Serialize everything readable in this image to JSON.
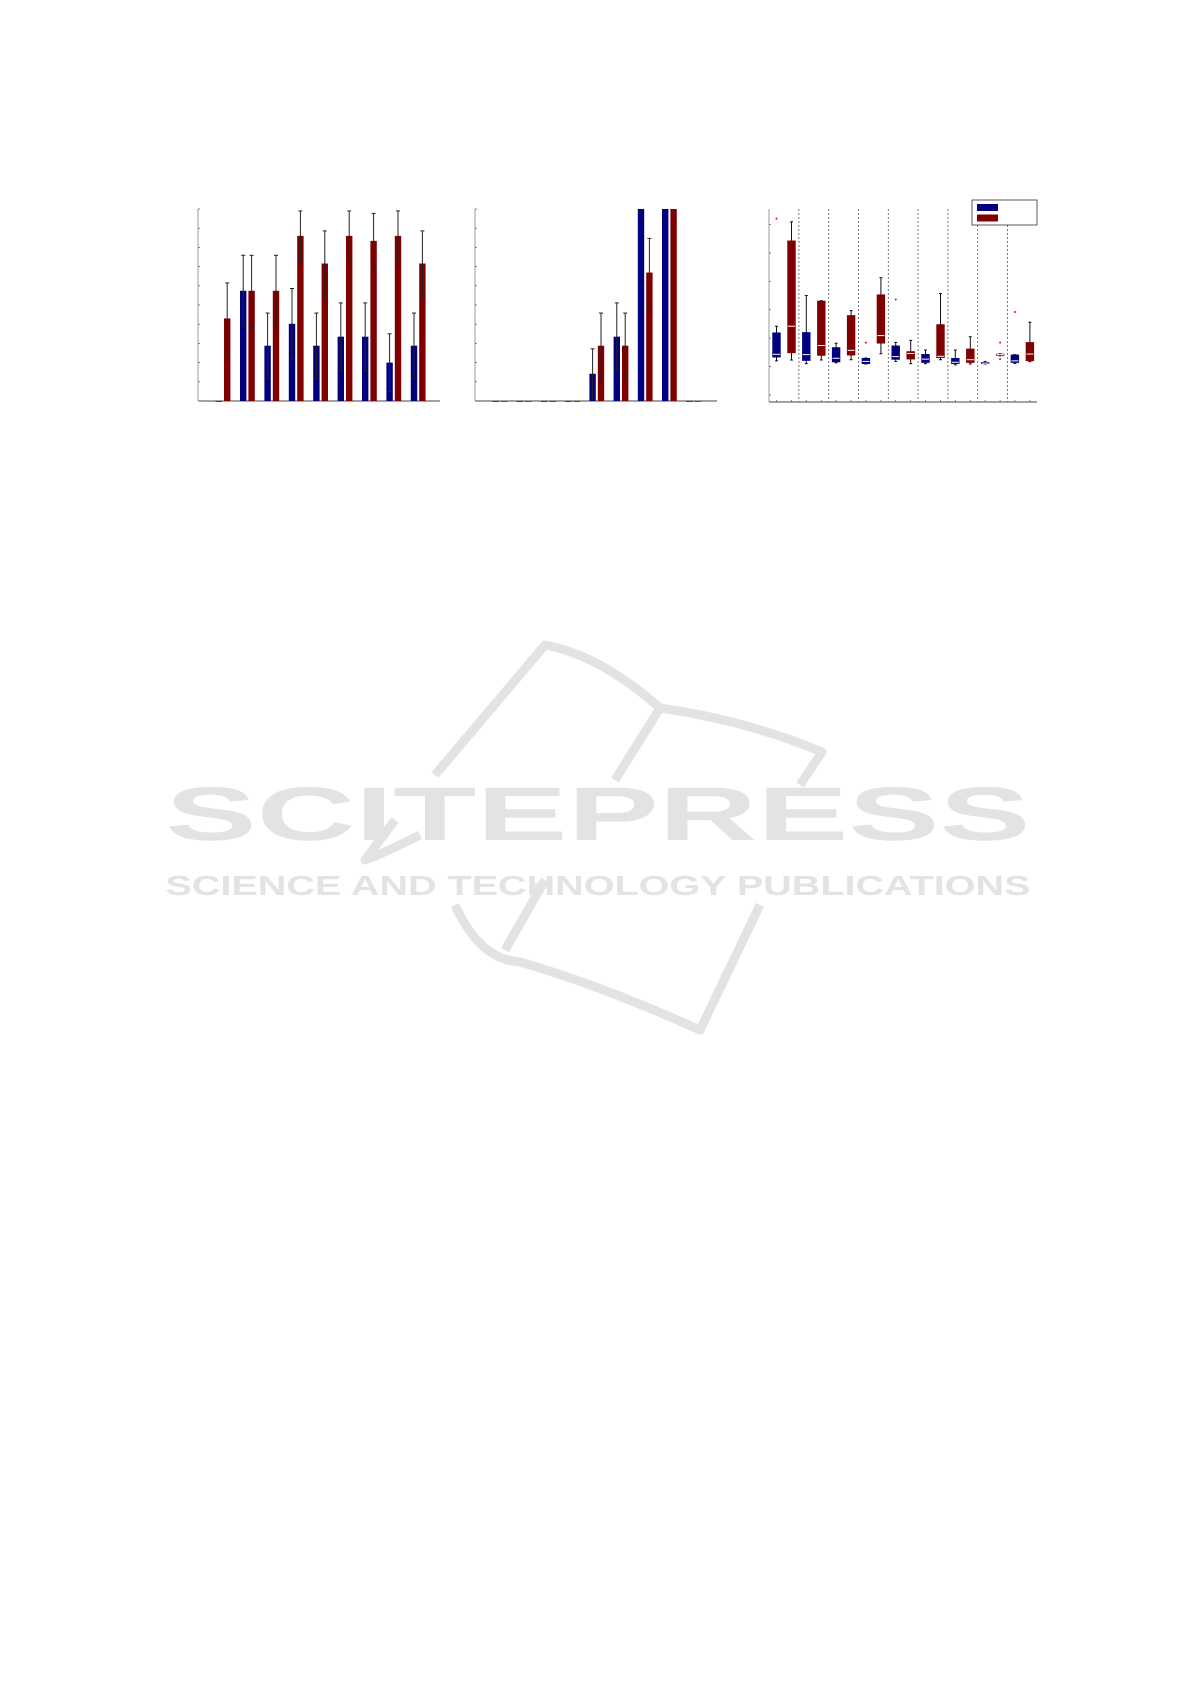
{
  "colors": {
    "series_a": "#000080",
    "series_b": "#800000",
    "outlier": "#ff0000",
    "watermark": "#e3e3e3"
  },
  "watermark": {
    "title": "SCITEPRESS",
    "subtitle": "SCIENCE AND TECHNOLOGY PUBLICATIONS"
  },
  "chart_data": [
    {
      "type": "bar",
      "grouped": true,
      "error_bars": true,
      "categories": [
        "1",
        "2",
        "3",
        "4",
        "5",
        "6",
        "7",
        "8",
        "9"
      ],
      "ylim": [
        0,
        10
      ],
      "yticks": [
        0,
        1,
        2,
        3,
        4,
        5,
        6,
        7,
        8,
        9,
        10
      ],
      "tick_labels_shown": false,
      "series": [
        {
          "color": "#000080",
          "values": [
            0,
            5.74,
            2.88,
            4.02,
            2.88,
            3.35,
            3.35,
            2.0,
            2.88
          ],
          "errors": [
            0,
            1.85,
            1.7,
            1.84,
            1.7,
            1.76,
            1.76,
            1.5,
            1.7
          ]
        },
        {
          "color": "#800000",
          "values": [
            4.3,
            5.74,
            5.74,
            8.6,
            7.16,
            8.6,
            8.34,
            8.6,
            7.16
          ],
          "errors": [
            1.85,
            1.85,
            1.85,
            1.3,
            1.7,
            1.3,
            1.43,
            1.3,
            1.7
          ]
        }
      ]
    },
    {
      "type": "bar",
      "grouped": true,
      "error_bars": true,
      "categories": [
        "1",
        "2",
        "3",
        "4",
        "5",
        "6",
        "7",
        "8",
        "9"
      ],
      "ylim": [
        0,
        10
      ],
      "yticks": [
        0,
        1,
        2,
        3,
        4,
        5,
        6,
        7,
        8,
        9,
        10
      ],
      "tick_labels_shown": false,
      "series": [
        {
          "color": "#000080",
          "values": [
            0,
            0,
            0,
            0,
            1.42,
            3.35,
            10,
            10,
            0
          ],
          "errors": [
            0,
            0,
            0,
            0,
            1.3,
            1.76,
            0,
            0,
            0
          ]
        },
        {
          "color": "#800000",
          "values": [
            0,
            0,
            0,
            0,
            2.88,
            2.88,
            6.69,
            10,
            0
          ],
          "errors": [
            0,
            0,
            0,
            0,
            1.7,
            1.7,
            1.78,
            0,
            0
          ]
        }
      ]
    },
    {
      "type": "boxplot",
      "groups": 9,
      "group_separators": "dotted",
      "ylim": [
        -0.25,
        6.55
      ],
      "yticks": [
        0,
        1,
        2,
        3,
        4,
        5,
        6
      ],
      "tick_labels_shown": false,
      "legend": {
        "placement": "top-right",
        "entries": [
          {
            "color": "#000080"
          },
          {
            "color": "#800000"
          }
        ]
      },
      "boxes": [
        {
          "group": 1,
          "series": 0,
          "low": 1.2,
          "q1": 1.32,
          "median": 1.43,
          "q3": 2.2,
          "high": 2.42,
          "outliers": [
            6.21
          ]
        },
        {
          "group": 1,
          "series": 1,
          "low": 1.23,
          "q1": 1.47,
          "median": 2.42,
          "q3": 5.44,
          "high": 6.1,
          "outliers": []
        },
        {
          "group": 2,
          "series": 0,
          "low": 1.1,
          "q1": 1.2,
          "median": 1.42,
          "q3": 2.21,
          "high": 3.5,
          "outliers": []
        },
        {
          "group": 2,
          "series": 1,
          "low": 1.23,
          "q1": 1.38,
          "median": 1.74,
          "q3": 3.32,
          "high": 3.32,
          "outliers": []
        },
        {
          "group": 3,
          "series": 0,
          "low": 1.13,
          "q1": 1.15,
          "median": 1.29,
          "q3": 1.68,
          "high": 1.82,
          "outliers": []
        },
        {
          "group": 3,
          "series": 1,
          "low": 1.24,
          "q1": 1.39,
          "median": 1.57,
          "q3": 2.81,
          "high": 2.97,
          "outliers": []
        },
        {
          "group": 4,
          "series": 0,
          "low": 1.09,
          "q1": 1.09,
          "median": 1.18,
          "q3": 1.3,
          "high": 1.3,
          "outliers": [
            1.84
          ]
        },
        {
          "group": 4,
          "series": 1,
          "low": 1.45,
          "q1": 1.81,
          "median": 2.09,
          "q3": 3.54,
          "high": 4.13,
          "outliers": []
        },
        {
          "group": 5,
          "series": 0,
          "low": 1.18,
          "q1": 1.24,
          "median": 1.35,
          "q3": 1.74,
          "high": 1.85,
          "outliers": [
            3.36
          ]
        },
        {
          "group": 5,
          "series": 1,
          "low": 1.1,
          "q1": 1.25,
          "median": 1.46,
          "q3": 1.54,
          "high": 1.92,
          "outliers": []
        },
        {
          "group": 6,
          "series": 0,
          "low": 1.1,
          "q1": 1.13,
          "median": 1.26,
          "q3": 1.44,
          "high": 1.58,
          "outliers": []
        },
        {
          "group": 6,
          "series": 1,
          "low": 1.24,
          "q1": 1.3,
          "median": 1.36,
          "q3": 2.49,
          "high": 3.57,
          "outliers": []
        },
        {
          "group": 7,
          "series": 0,
          "low": 1.06,
          "q1": 1.09,
          "median": 1.15,
          "q3": 1.3,
          "high": 1.58,
          "outliers": []
        },
        {
          "group": 7,
          "series": 1,
          "low": 1.09,
          "q1": 1.13,
          "median": 1.24,
          "q3": 1.63,
          "high": 2.05,
          "outliers": []
        },
        {
          "group": 8,
          "series": 0,
          "low": 1.09,
          "q1": 1.09,
          "median": 1.12,
          "q3": 1.16,
          "high": 1.18,
          "outliers": []
        },
        {
          "group": 8,
          "series": 1,
          "low": 1.38,
          "q1": 1.38,
          "median": 1.42,
          "q3": 1.45,
          "high": 1.45,
          "outliers": [
            1.84,
            1.26
          ]
        },
        {
          "group": 9,
          "series": 0,
          "low": 1.11,
          "q1": 1.13,
          "median": 1.2,
          "q3": 1.42,
          "high": 1.42,
          "outliers": [
            2.92
          ]
        },
        {
          "group": 9,
          "series": 1,
          "low": 1.17,
          "q1": 1.19,
          "median": 1.44,
          "q3": 1.86,
          "high": 2.56,
          "outliers": []
        }
      ]
    }
  ]
}
